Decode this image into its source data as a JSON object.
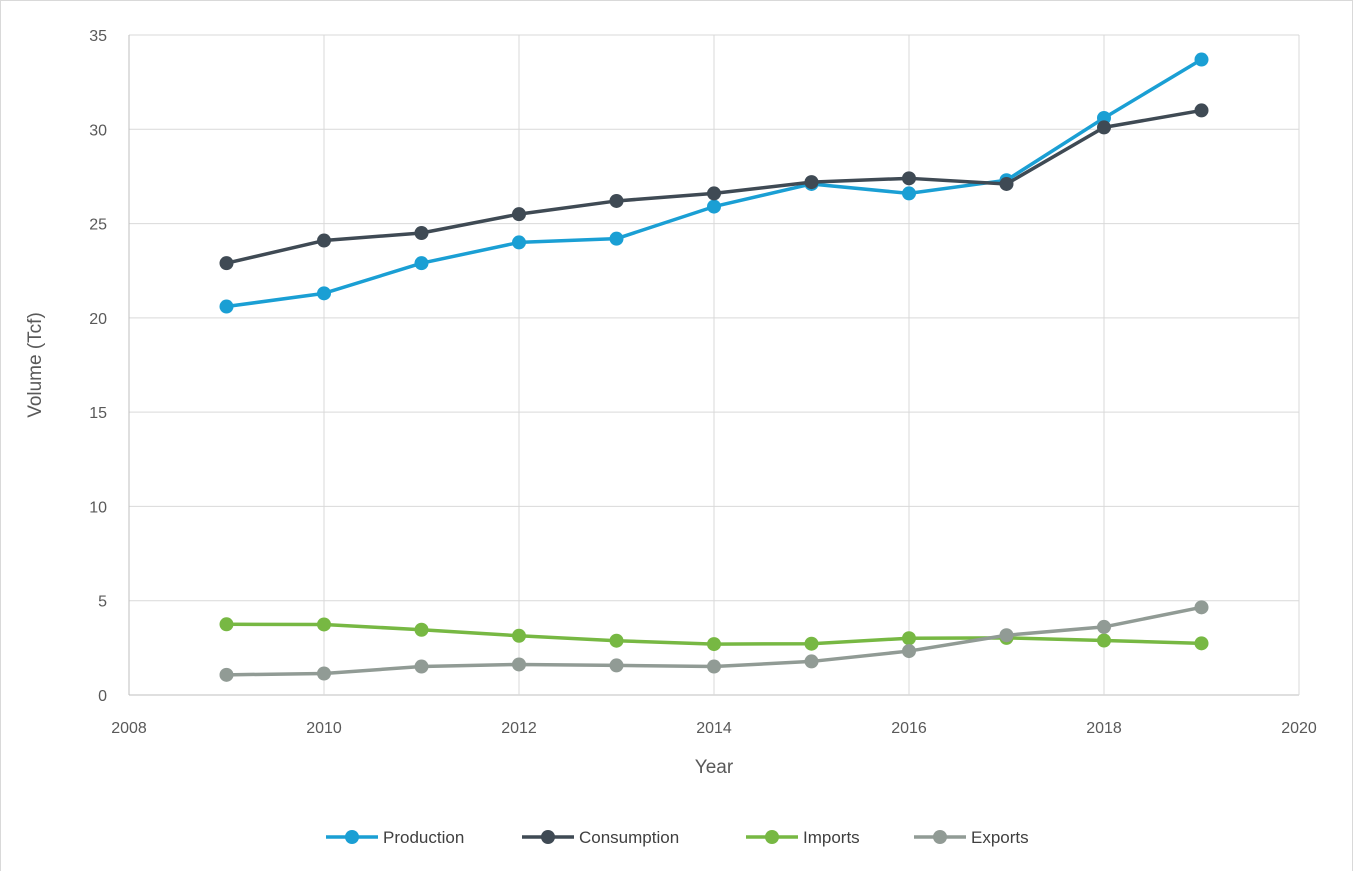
{
  "chart_data": {
    "type": "line",
    "title": "",
    "xlabel": "Year",
    "ylabel": "Volume (Tcf)",
    "xlim": [
      2008,
      2020
    ],
    "ylim": [
      0,
      35
    ],
    "x_ticks": [
      2008,
      2010,
      2012,
      2014,
      2016,
      2018,
      2020
    ],
    "y_ticks": [
      0,
      5,
      10,
      15,
      20,
      25,
      30,
      35
    ],
    "grid": true,
    "legend_position": "bottom",
    "x": [
      2009,
      2010,
      2011,
      2012,
      2013,
      2014,
      2015,
      2016,
      2017,
      2018,
      2019
    ],
    "series": [
      {
        "name": "Production",
        "color": "#1a9fd4",
        "values": [
          20.6,
          21.3,
          22.9,
          24.0,
          24.2,
          25.9,
          27.1,
          26.6,
          27.3,
          30.6,
          33.7
        ]
      },
      {
        "name": "Consumption",
        "color": "#3f4a54",
        "values": [
          22.9,
          24.1,
          24.5,
          25.5,
          26.2,
          26.6,
          27.2,
          27.4,
          27.1,
          30.1,
          31.0
        ]
      },
      {
        "name": "Imports",
        "color": "#77b843",
        "values": [
          3.75,
          3.74,
          3.46,
          3.14,
          2.88,
          2.7,
          2.72,
          3.01,
          3.03,
          2.89,
          2.74
        ]
      },
      {
        "name": "Exports",
        "color": "#919b95",
        "values": [
          1.07,
          1.14,
          1.51,
          1.62,
          1.57,
          1.51,
          1.78,
          2.33,
          3.17,
          3.61,
          4.65
        ]
      }
    ]
  }
}
